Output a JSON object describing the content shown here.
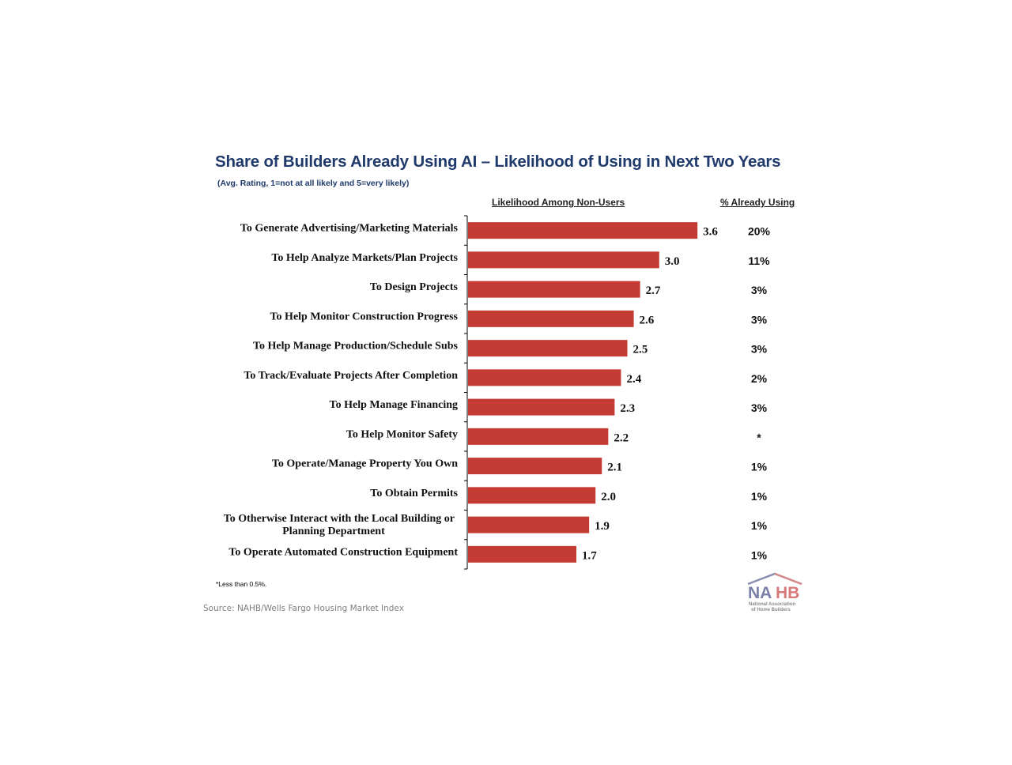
{
  "header": {
    "title": "Share of Builders Already Using AI – Likelihood of Using in Next Two Years",
    "subtitle": "(Avg. Rating, 1=not at all likely and 5=very likely)",
    "col_likelihood": "Likelihood Among Non-Users",
    "col_already": "% Already Using"
  },
  "footer": {
    "footnote": "*Less than 0.5%.",
    "source": "Source: NAHB/Wells Fargo Housing Market Index"
  },
  "logo": {
    "wordmark": "NAHB",
    "line1": "National Association",
    "line2": "of Home Builders"
  },
  "colors": {
    "bar": "#C33B33",
    "title": "#1F3A6B"
  },
  "chart_data": {
    "type": "bar",
    "orientation": "horizontal",
    "title": "Share of Builders Already Using AI – Likelihood of Using in Next Two Years",
    "subtitle": "(Avg. Rating, 1=not at all likely and 5=very likely)",
    "xlabel": "Likelihood Among Non-Users",
    "xlim": [
      0,
      5
    ],
    "grid": false,
    "legend": "none",
    "categories": [
      [
        "To Generate Advertising/Marketing Materials"
      ],
      [
        "To Help Analyze Markets/Plan Projects"
      ],
      [
        "To Design Projects"
      ],
      [
        "To Help Monitor Construction Progress"
      ],
      [
        "To Help Manage Production/Schedule Subs"
      ],
      [
        "To Track/Evaluate Projects After Completion"
      ],
      [
        "To Help Manage Financing"
      ],
      [
        "To Help Monitor Safety"
      ],
      [
        "To Operate/Manage Property You Own"
      ],
      [
        "To Obtain Permits"
      ],
      [
        "To Otherwise Interact with the Local Building or",
        "Planning Department"
      ],
      [
        "To Operate Automated Construction Equipment"
      ]
    ],
    "values": [
      3.6,
      3.0,
      2.7,
      2.6,
      2.5,
      2.4,
      2.3,
      2.2,
      2.1,
      2.0,
      1.9,
      1.7
    ],
    "value_labels": [
      "3.6",
      "3.0",
      "2.7",
      "2.6",
      "2.5",
      "2.4",
      "2.3",
      "2.2",
      "2.1",
      "2.0",
      "1.9",
      "1.7"
    ],
    "already_using": [
      "20%",
      "11%",
      "3%",
      "3%",
      "3%",
      "2%",
      "3%",
      "*",
      "1%",
      "1%",
      "1%",
      "1%"
    ]
  }
}
